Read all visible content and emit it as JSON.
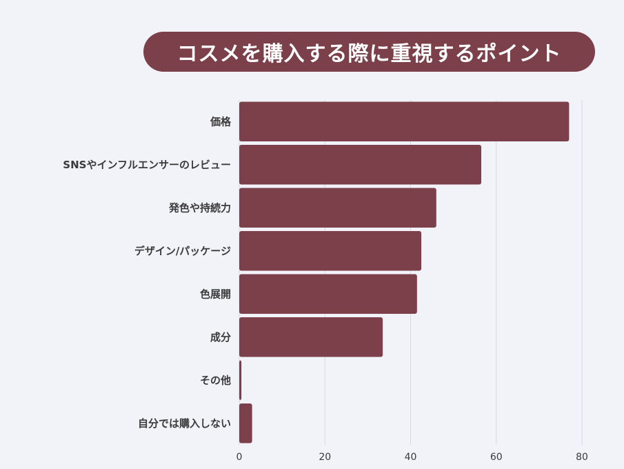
{
  "chart_data": {
    "type": "bar",
    "orientation": "horizontal",
    "title": "コスメを購入する際に重視するポイント",
    "categories": [
      "価格",
      "SNSやインフルエンサーのレビュー",
      "発色や持続力",
      "デザイン/パッケージ",
      "色展開",
      "成分",
      "その他",
      "自分では購入しない"
    ],
    "values": [
      77,
      56.5,
      46,
      42.5,
      41.5,
      33.5,
      0.5,
      3
    ],
    "xlim": [
      0,
      80
    ],
    "xticks": [
      0,
      20,
      40,
      60,
      80
    ],
    "xlabel": "",
    "ylabel": "",
    "grid": true,
    "bar_color": "#7b404a"
  }
}
